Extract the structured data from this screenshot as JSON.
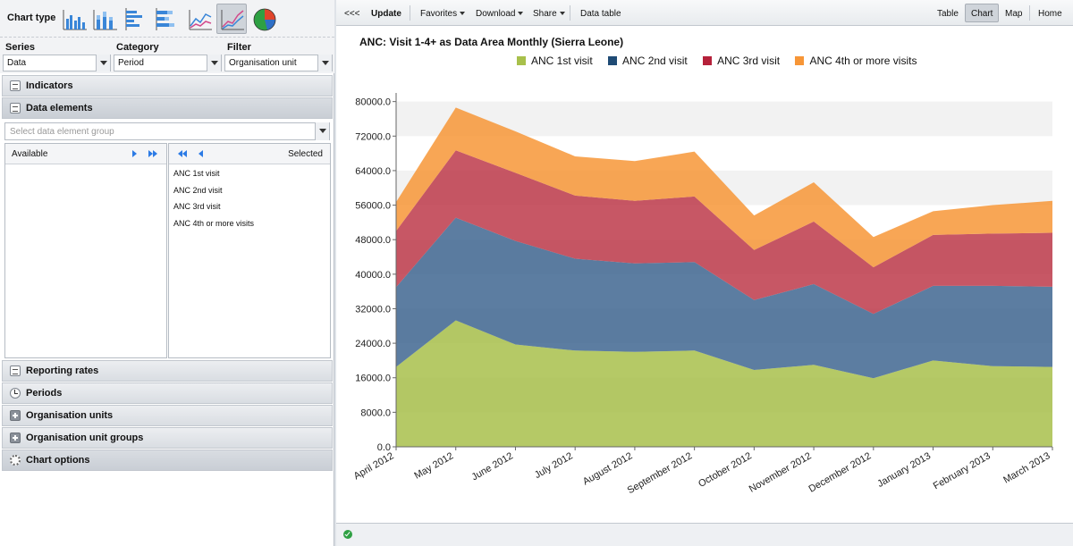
{
  "left": {
    "chart_type_label": "Chart type",
    "chart_types": [
      {
        "icon": "column-chart-icon",
        "selected": false
      },
      {
        "icon": "stacked-column-chart-icon",
        "selected": false
      },
      {
        "icon": "bar-chart-icon",
        "selected": false
      },
      {
        "icon": "stacked-bar-chart-icon",
        "selected": false
      },
      {
        "icon": "line-chart-icon",
        "selected": false
      },
      {
        "icon": "area-chart-icon",
        "selected": true
      },
      {
        "icon": "pie-chart-icon",
        "selected": false
      }
    ],
    "series_label": "Series",
    "series_value": "Data",
    "category_label": "Category",
    "category_value": "Period",
    "filter_label": "Filter",
    "filter_value": "Organisation unit",
    "accordion": {
      "indicators": "Indicators",
      "data_elements": "Data elements",
      "reporting_rates": "Reporting rates",
      "periods": "Periods",
      "org_units": "Organisation units",
      "org_unit_groups": "Organisation unit groups",
      "chart_options": "Chart options"
    },
    "de_group_placeholder": "Select data element group",
    "available_label": "Available",
    "selected_label": "Selected",
    "selected_items": [
      "ANC 1st visit",
      "ANC 2nd visit",
      "ANC 3rd visit",
      "ANC 4th or more visits"
    ]
  },
  "toolbar": {
    "collapse": "<<<",
    "update": "Update",
    "favorites": "Favorites",
    "download": "Download",
    "share": "Share",
    "data_table": "Data table",
    "table": "Table",
    "chart": "Chart",
    "map": "Map",
    "home": "Home"
  },
  "chart_data": {
    "type": "area",
    "stacked": true,
    "title": "ANC: Visit 1-4+ as Data Area Monthly (Sierra Leone)",
    "categories": [
      "April 2012",
      "May 2012",
      "June 2012",
      "July 2012",
      "August 2012",
      "September 2012",
      "October 2012",
      "November 2012",
      "December 2012",
      "January 2013",
      "February 2013",
      "March 2013"
    ],
    "series": [
      {
        "name": "ANC 1st visit",
        "color": "#a8c04b",
        "values": [
          18500,
          29300,
          23700,
          22300,
          22000,
          22300,
          17800,
          19000,
          15900,
          20000,
          18700,
          18500
        ]
      },
      {
        "name": "ANC 2nd visit",
        "color": "#3f6690",
        "values": [
          18500,
          23800,
          24000,
          21300,
          20500,
          20500,
          16200,
          18700,
          14900,
          17300,
          18600,
          18600
        ]
      },
      {
        "name": "ANC 3rd visit",
        "color": "#bd3a4a",
        "values": [
          13000,
          15600,
          15800,
          14600,
          14500,
          15200,
          11600,
          14500,
          10800,
          11800,
          12100,
          12500
        ]
      },
      {
        "name": "ANC 4th or more visits",
        "color": "#f79637",
        "values": [
          6700,
          9900,
          9600,
          9100,
          9200,
          10400,
          8000,
          9100,
          7000,
          5500,
          6600,
          7400
        ]
      }
    ],
    "yticks": [
      "0.0",
      "8000.0",
      "16000.0",
      "24000.0",
      "32000.0",
      "40000.0",
      "48000.0",
      "56000.0",
      "64000.0",
      "72000.0",
      "80000.0"
    ],
    "ylim": [
      0,
      82000
    ],
    "grid": true,
    "legend": "top"
  },
  "status": {
    "icon": "check-icon"
  }
}
